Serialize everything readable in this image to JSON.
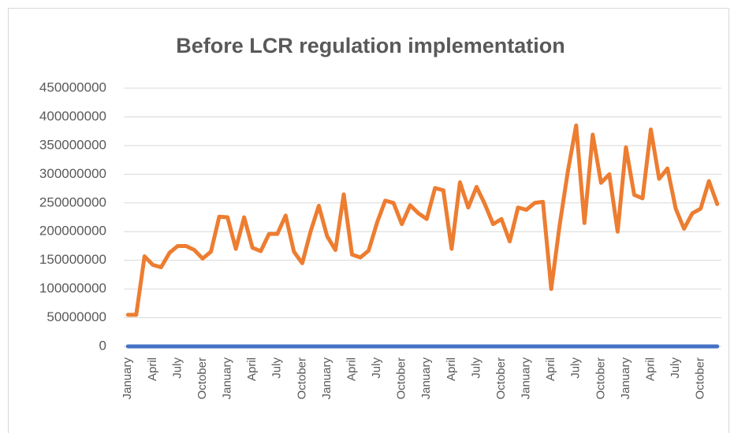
{
  "chart_data": {
    "type": "line",
    "title": "Before LCR regulation implementation",
    "categories": [
      "January",
      null,
      null,
      "April",
      null,
      null,
      "July",
      null,
      null,
      "October",
      null,
      null,
      "January",
      null,
      null,
      "April",
      null,
      null,
      "July",
      null,
      null,
      "October",
      null,
      null,
      "January",
      null,
      null,
      "April",
      null,
      null,
      "July",
      null,
      null,
      "October",
      null,
      null,
      "January",
      null,
      null,
      "April",
      null,
      null,
      "July",
      null,
      null,
      "October",
      null,
      null,
      "January",
      null,
      null,
      "April",
      null,
      null,
      "July",
      null,
      null,
      "October",
      null,
      null,
      "January",
      null,
      null,
      "April",
      null,
      null,
      "July",
      null,
      null,
      "October",
      null,
      null
    ],
    "series": [
      {
        "color": "#4472c4",
        "values": [
          0,
          0,
          0,
          0,
          0,
          0,
          0,
          0,
          0,
          0,
          0,
          0,
          0,
          0,
          0,
          0,
          0,
          0,
          0,
          0,
          0,
          0,
          0,
          0,
          0,
          0,
          0,
          0,
          0,
          0,
          0,
          0,
          0,
          0,
          0,
          0,
          0,
          0,
          0,
          0,
          0,
          0,
          0,
          0,
          0,
          0,
          0,
          0,
          0,
          0,
          0,
          0,
          0,
          0,
          0,
          0,
          0,
          0,
          0,
          0,
          0,
          0,
          0,
          0,
          0,
          0,
          0,
          0,
          0,
          0,
          0,
          0
        ]
      },
      {
        "color": "#ed7d31",
        "values": [
          55000000,
          55000000,
          157000000,
          142000000,
          138000000,
          163000000,
          175000000,
          175000000,
          168000000,
          153000000,
          165000000,
          226000000,
          225000000,
          170000000,
          225000000,
          172000000,
          166000000,
          196000000,
          196000000,
          228000000,
          165000000,
          145000000,
          200000000,
          245000000,
          192000000,
          168000000,
          265000000,
          160000000,
          155000000,
          167000000,
          215000000,
          254000000,
          250000000,
          213000000,
          246000000,
          232000000,
          222000000,
          276000000,
          272000000,
          170000000,
          286000000,
          242000000,
          278000000,
          248000000,
          213000000,
          222000000,
          183000000,
          242000000,
          238000000,
          250000000,
          252000000,
          100000000,
          210000000,
          305000000,
          385000000,
          215000000,
          369000000,
          285000000,
          300000000,
          200000000,
          347000000,
          264000000,
          258000000,
          378000000,
          292000000,
          310000000,
          240000000,
          205000000,
          232000000,
          240000000,
          288000000,
          248000000
        ]
      }
    ],
    "ylim": [
      0,
      450000000
    ],
    "yticks": [
      0,
      50000000,
      100000000,
      150000000,
      200000000,
      250000000,
      300000000,
      350000000,
      400000000,
      450000000
    ],
    "grid": true
  }
}
